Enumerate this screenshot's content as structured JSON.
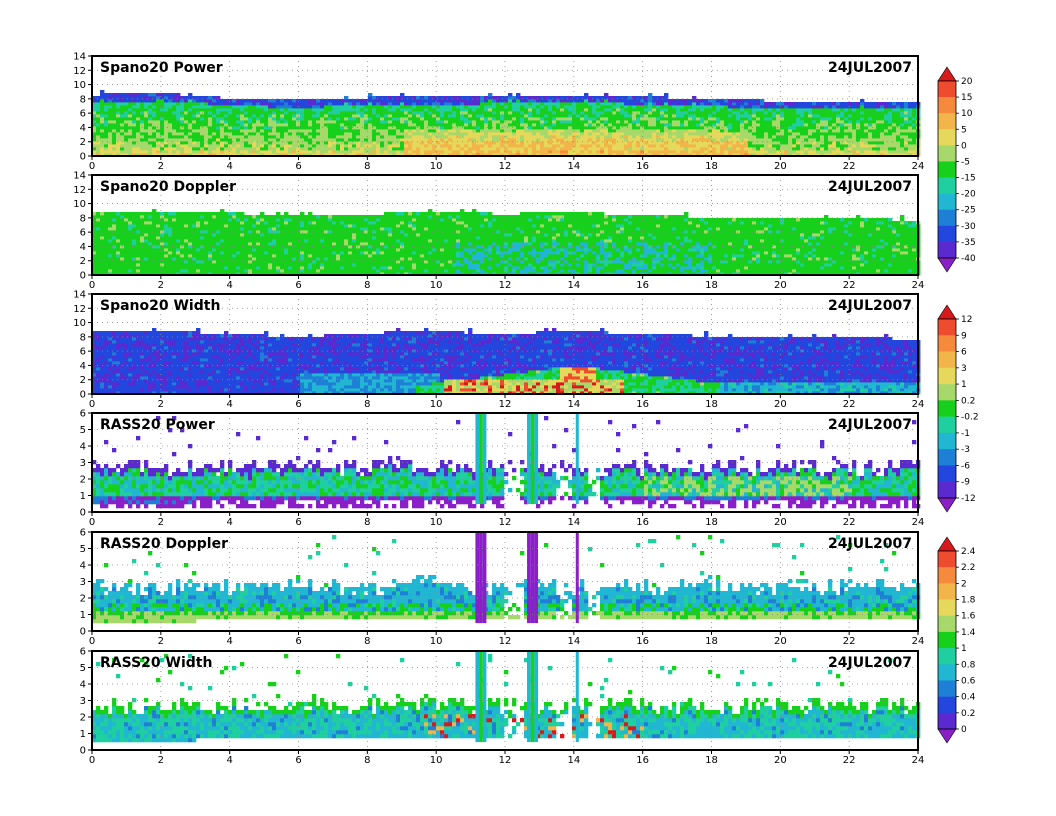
{
  "chart_data": [
    {
      "type": "heatmap",
      "title": "Spano20 Power",
      "date": "24JUL2007",
      "xlim": [
        0,
        24
      ],
      "ylim": [
        0,
        14
      ],
      "xticks": [
        0,
        2,
        4,
        6,
        8,
        10,
        12,
        14,
        16,
        18,
        20,
        22,
        24
      ],
      "yticks": [
        0,
        2,
        4,
        6,
        8,
        10,
        12,
        14
      ],
      "grid": true,
      "echo_top": {
        "x": [
          0,
          2,
          4,
          6,
          8,
          10,
          12,
          14,
          16,
          18,
          20,
          22,
          24
        ],
        "y": [
          8.8,
          9.0,
          8.3,
          8.0,
          8.4,
          8.5,
          8.6,
          8.7,
          8.5,
          8.2,
          7.9,
          7.9,
          7.8
        ]
      },
      "colorbar": {
        "labels": [
          "20",
          "15",
          "10",
          "5",
          "0",
          "-5",
          "-15",
          "-20",
          "-25",
          "-30",
          "-35",
          "-40"
        ],
        "colors": [
          "#d7191c",
          "#ee4c2e",
          "#f58a3c",
          "#f2b54a",
          "#e6d85a",
          "#a6d96a",
          "#16d01c",
          "#1fcfa0",
          "#21b6d2",
          "#1e7fd6",
          "#2347de",
          "#5a2ad0",
          "#8a1fc8"
        ]
      }
    },
    {
      "type": "heatmap",
      "title": "Spano20 Doppler",
      "date": "24JUL2007",
      "xlim": [
        0,
        24
      ],
      "ylim": [
        0,
        14
      ],
      "xticks": [
        0,
        2,
        4,
        6,
        8,
        10,
        12,
        14,
        16,
        18,
        20,
        22,
        24
      ],
      "yticks": [
        0,
        2,
        4,
        6,
        8,
        10,
        12,
        14
      ],
      "grid": true,
      "echo_top": {
        "x": [
          0,
          2,
          4,
          6,
          8,
          10,
          12,
          14,
          16,
          18,
          20,
          22,
          24
        ],
        "y": [
          9.0,
          9.1,
          8.9,
          8.4,
          8.8,
          8.9,
          8.8,
          8.9,
          8.7,
          8.2,
          8.0,
          8.1,
          7.9
        ]
      }
    },
    {
      "type": "heatmap",
      "title": "Spano20 Width",
      "date": "24JUL2007",
      "xlim": [
        0,
        24
      ],
      "ylim": [
        0,
        14
      ],
      "xticks": [
        0,
        2,
        4,
        6,
        8,
        10,
        12,
        14,
        16,
        18,
        20,
        22,
        24
      ],
      "yticks": [
        0,
        2,
        4,
        6,
        8,
        10,
        12,
        14
      ],
      "grid": true,
      "echo_top": {
        "x": [
          0,
          2,
          4,
          6,
          8,
          10,
          12,
          14,
          16,
          18,
          20,
          22,
          24
        ],
        "y": [
          9.0,
          9.1,
          8.6,
          8.2,
          8.8,
          8.9,
          8.7,
          9.0,
          8.6,
          8.3,
          8.0,
          8.1,
          7.9
        ]
      },
      "colorbar": {
        "labels": [
          "12",
          "9",
          "6",
          "3",
          "1",
          "0.2",
          "-0.2",
          "-1",
          "-3",
          "-6",
          "-9",
          "-12"
        ],
        "colors": [
          "#d7191c",
          "#ee4c2e",
          "#f58a3c",
          "#f2b54a",
          "#e6d85a",
          "#a6d96a",
          "#16d01c",
          "#1fcfa0",
          "#21b6d2",
          "#1e7fd6",
          "#2347de",
          "#5a2ad0",
          "#8a1fc8"
        ]
      }
    },
    {
      "type": "heatmap",
      "title": "RASS20 Power",
      "date": "24JUL2007",
      "xlim": [
        0,
        24
      ],
      "ylim": [
        0,
        6
      ],
      "xticks": [
        0,
        2,
        4,
        6,
        8,
        10,
        12,
        14,
        16,
        18,
        20,
        22,
        24
      ],
      "yticks": [
        0,
        1,
        2,
        3,
        4,
        5,
        6
      ],
      "grid": true,
      "spikes": [
        11.3,
        12.8,
        14.1
      ]
    },
    {
      "type": "heatmap",
      "title": "RASS20 Doppler",
      "date": "24JUL2007",
      "xlim": [
        0,
        24
      ],
      "ylim": [
        0,
        6
      ],
      "xticks": [
        0,
        2,
        4,
        6,
        8,
        10,
        12,
        14,
        16,
        18,
        20,
        22,
        24
      ],
      "yticks": [
        0,
        1,
        2,
        3,
        4,
        5,
        6
      ],
      "grid": true,
      "spikes": [
        11.3,
        12.8,
        14.1
      ],
      "colorbar": {
        "labels": [
          "2.4",
          "2.2",
          "2",
          "1.8",
          "1.6",
          "1.4",
          "1",
          "0.8",
          "0.6",
          "0.4",
          "0.2",
          "0"
        ],
        "colors": [
          "#d7191c",
          "#ee4c2e",
          "#f58a3c",
          "#f2b54a",
          "#e6d85a",
          "#a6d96a",
          "#16d01c",
          "#1fcfa0",
          "#21b6d2",
          "#1e7fd6",
          "#2347de",
          "#5a2ad0",
          "#8a1fc8"
        ]
      }
    },
    {
      "type": "heatmap",
      "title": "RASS20 Width",
      "date": "24JUL2007",
      "xlim": [
        0,
        24
      ],
      "ylim": [
        0,
        6
      ],
      "xticks": [
        0,
        2,
        4,
        6,
        8,
        10,
        12,
        14,
        16,
        18,
        20,
        22,
        24
      ],
      "yticks": [
        0,
        1,
        2,
        3,
        4,
        5,
        6
      ],
      "grid": true,
      "spikes": [
        11.3,
        12.8,
        14.1
      ]
    }
  ]
}
